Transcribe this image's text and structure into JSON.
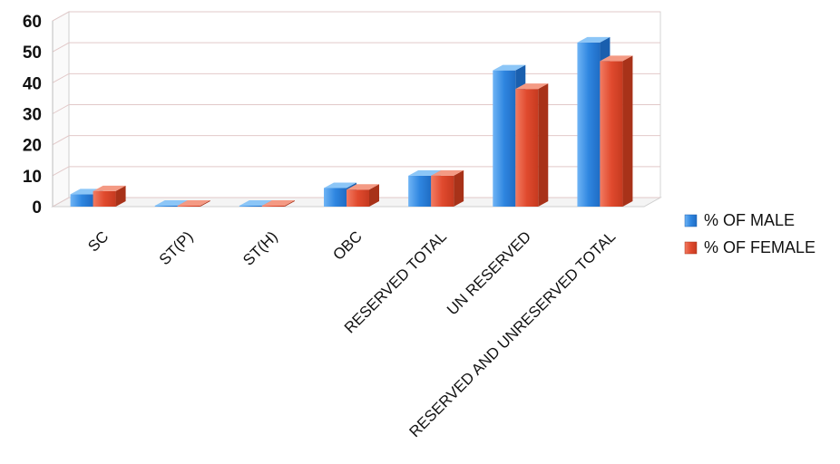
{
  "chart_data": {
    "type": "bar",
    "categories": [
      "SC",
      "ST(P)",
      "ST(H)",
      "OBC",
      "RESERVED TOTAL",
      "UN RESERVED",
      "RESERVED  AND UNRESERVED TOTAL"
    ],
    "series": [
      {
        "name": "% OF MALE",
        "values": [
          4,
          0.3,
          0.3,
          6,
          10,
          44,
          53
        ],
        "color": "#3a8ee6"
      },
      {
        "name": "% OF FEMALE",
        "values": [
          5,
          0.3,
          0.3,
          5.5,
          10,
          38,
          47
        ],
        "color": "#e8543a"
      }
    ],
    "yticks": [
      "0",
      "10",
      "20",
      "30",
      "40",
      "50",
      "60"
    ],
    "ylim": [
      0,
      60
    ],
    "grid": true,
    "legend_position": "right",
    "three_d": true
  }
}
